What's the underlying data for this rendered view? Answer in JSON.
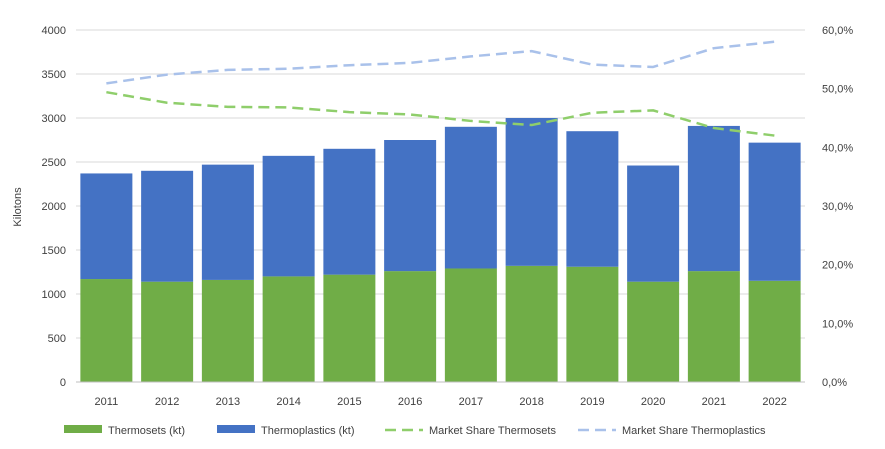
{
  "chart_data": {
    "type": "bar",
    "subtype": "stacked-bar-with-lines",
    "title": "",
    "xlabel": "",
    "ylabel": "Kilotons",
    "ylim": [
      0,
      4000
    ],
    "y2lim": [
      0,
      60
    ],
    "y_ticks": [
      "0",
      "500",
      "1000",
      "1500",
      "2000",
      "2500",
      "3000",
      "3500",
      "4000"
    ],
    "y2_ticks": [
      "0,0%",
      "10,0%",
      "20,0%",
      "30,0%",
      "40,0%",
      "50,0%",
      "60,0%"
    ],
    "categories": [
      "2011",
      "2012",
      "2013",
      "2014",
      "2015",
      "2016",
      "2017",
      "2018",
      "2019",
      "2020",
      "2021",
      "2022"
    ],
    "series": [
      {
        "name": "Thermosets (kt)",
        "kind": "bar",
        "axis": "left",
        "color": "#70ad47",
        "values": [
          1170,
          1140,
          1160,
          1200,
          1220,
          1260,
          1290,
          1320,
          1310,
          1140,
          1260,
          1150
        ]
      },
      {
        "name": "Thermoplastics (kt)",
        "kind": "bar",
        "axis": "left",
        "color": "#4472c4",
        "values": [
          1200,
          1260,
          1310,
          1370,
          1430,
          1490,
          1610,
          1680,
          1540,
          1320,
          1650,
          1570
        ]
      },
      {
        "name": "Market Share Thermosets",
        "kind": "line",
        "axis": "right",
        "style": "dashed",
        "color": "#8fce6b",
        "values": [
          49.4,
          47.6,
          46.9,
          46.8,
          46.0,
          45.6,
          44.5,
          43.8,
          45.9,
          46.3,
          43.3,
          42.0
        ]
      },
      {
        "name": "Market Share Thermoplastics",
        "kind": "line",
        "axis": "right",
        "style": "dashed",
        "color": "#a9c1ea",
        "values": [
          50.9,
          52.4,
          53.2,
          53.4,
          54.0,
          54.4,
          55.5,
          56.4,
          54.1,
          53.7,
          56.9,
          58.0
        ]
      }
    ],
    "legend": {
      "position": "bottom",
      "entries": [
        "Thermosets (kt)",
        "Thermoplastics (kt)",
        "Market Share Thermosets",
        "Market Share Thermoplastics"
      ]
    },
    "grid": true
  }
}
